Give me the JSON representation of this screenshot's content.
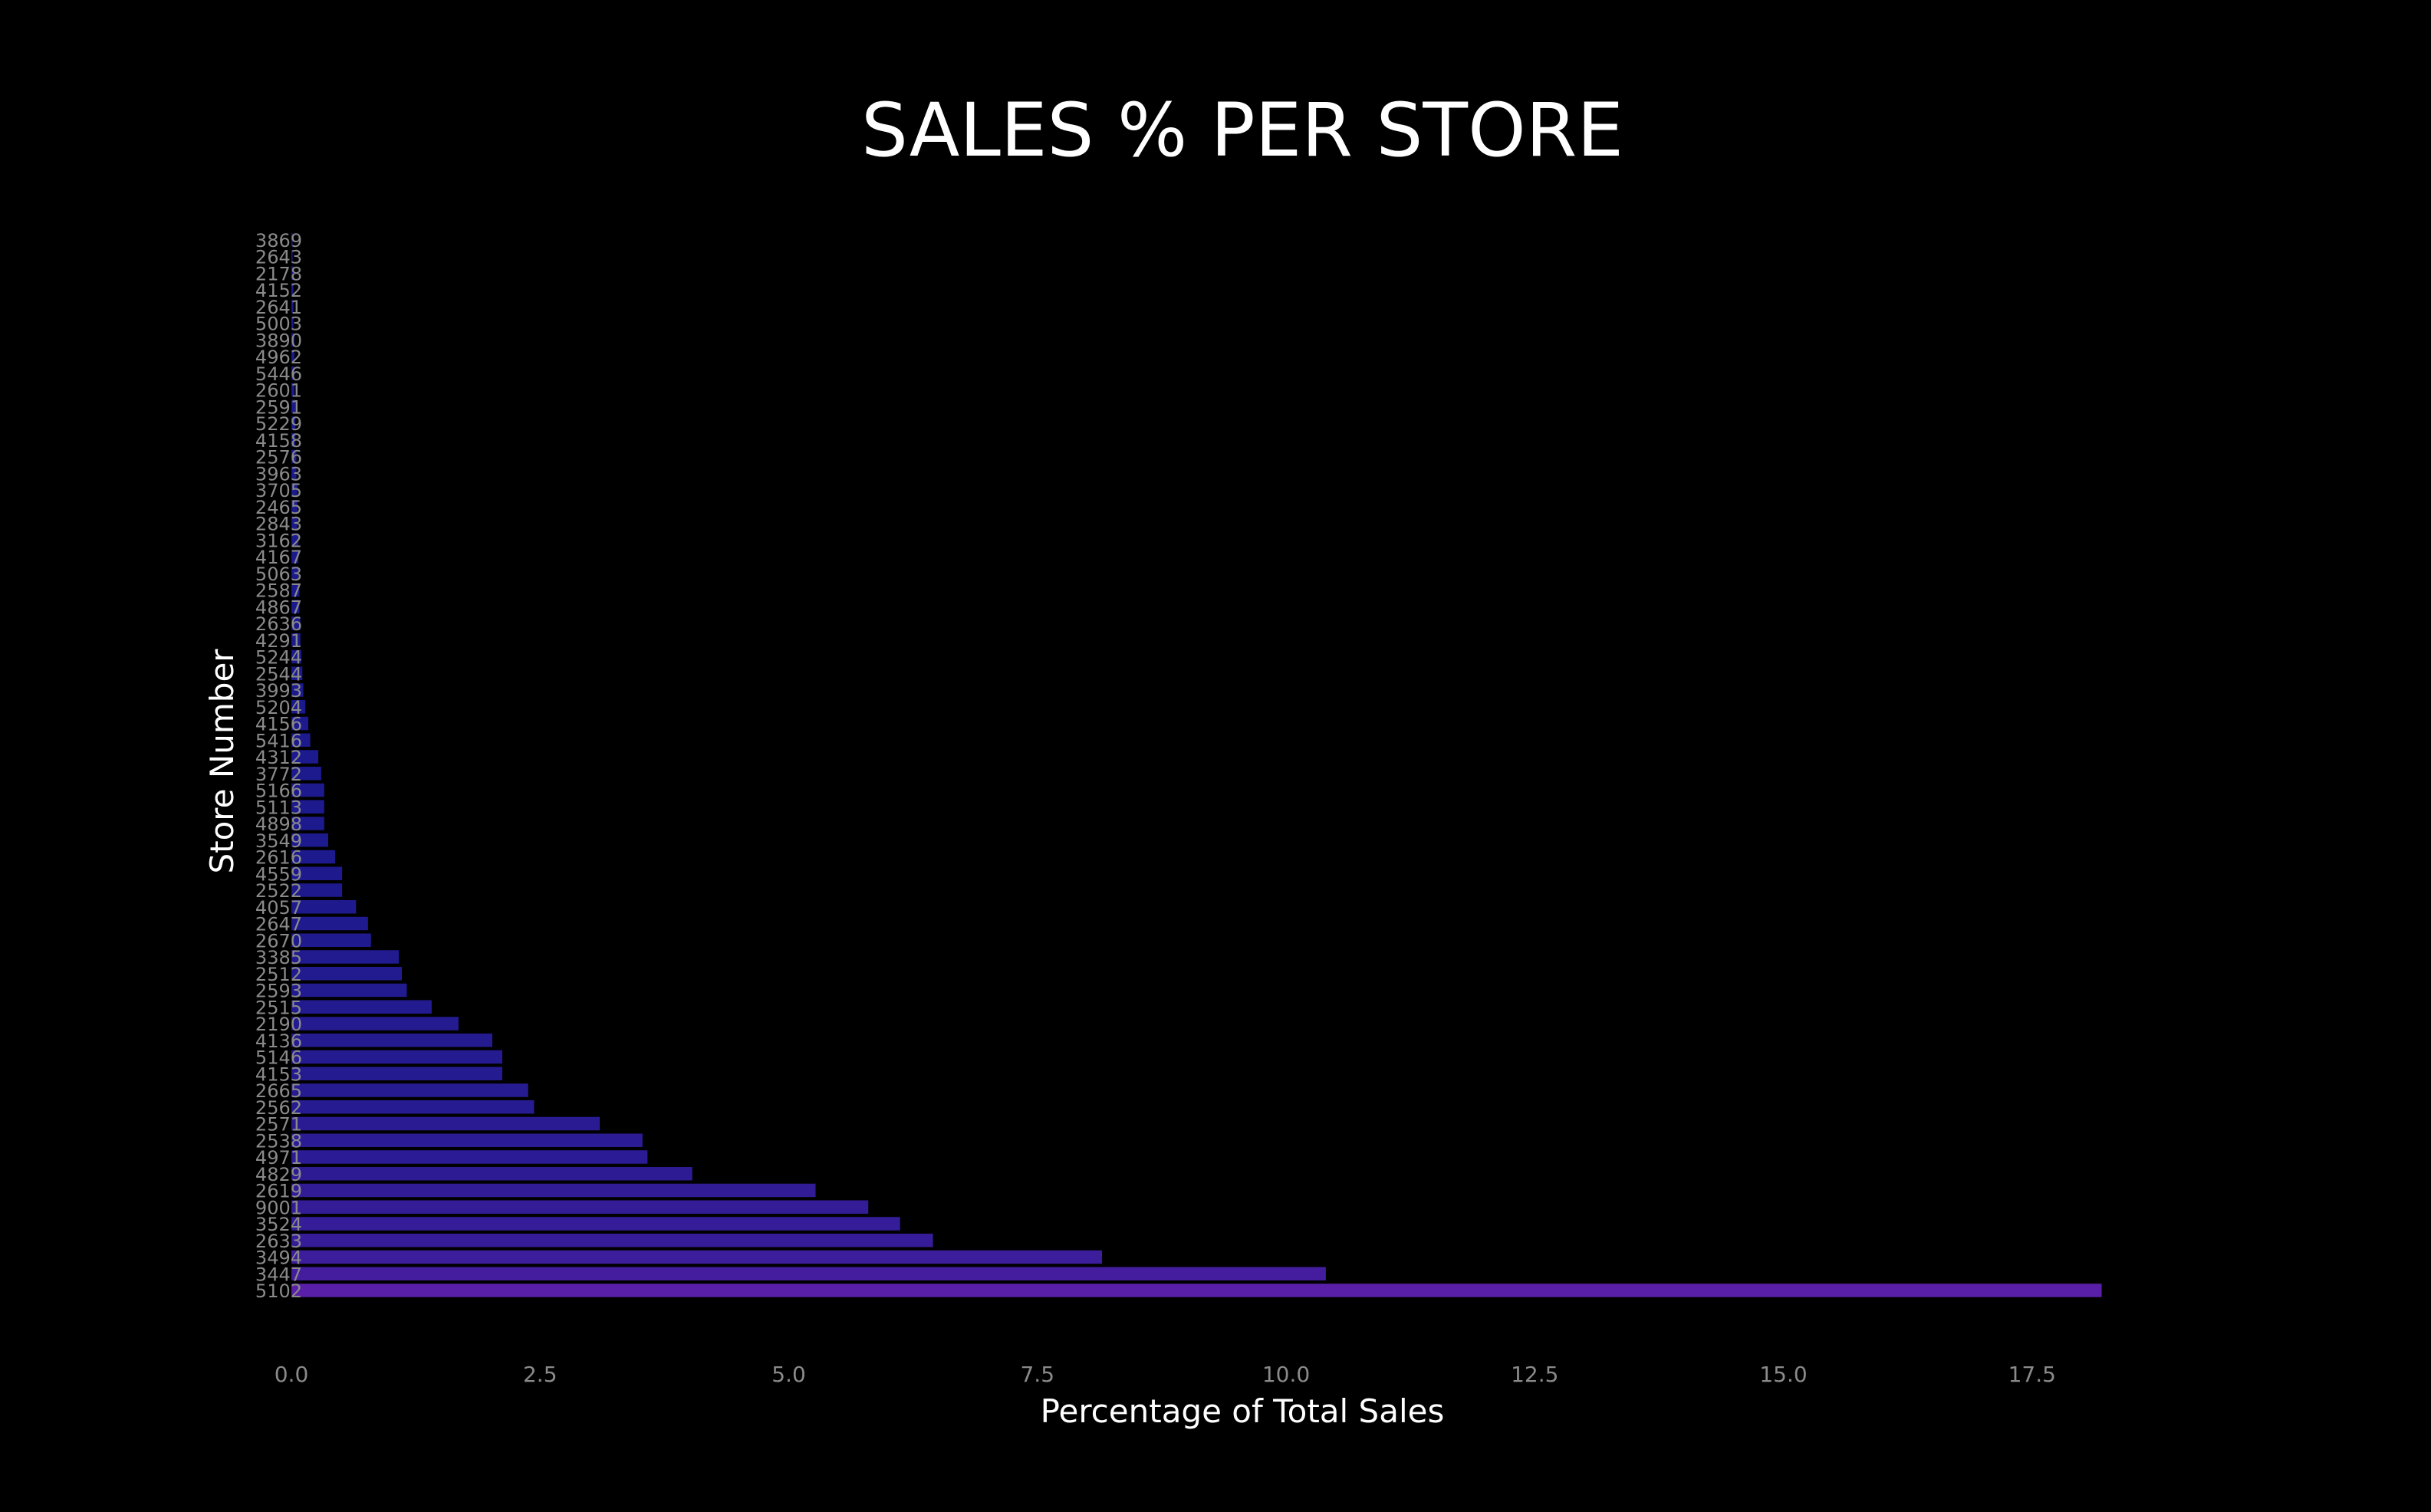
{
  "chart_data": {
    "type": "bar",
    "orientation": "horizontal",
    "title": "SALES % PER STORE",
    "xlabel": "Percentage of Total Sales",
    "ylabel": "Store Number",
    "xlim": [
      0,
      19.5
    ],
    "xticks": [
      "0.0",
      "2.5",
      "5.0",
      "7.5",
      "10.0",
      "12.5",
      "15.0",
      "17.5"
    ],
    "grid": false,
    "legend": "none",
    "colors": {
      "background": "#000000",
      "bar_low": "#1a1a8c",
      "bar_high": "#5a1fa8",
      "tick_text": "#8a8a8a",
      "title_text": "#ffffff"
    },
    "categories": [
      "5102",
      "3447",
      "3494",
      "2633",
      "3524",
      "9001",
      "2619",
      "4829",
      "4971",
      "2538",
      "2571",
      "2562",
      "2665",
      "4153",
      "5146",
      "4136",
      "2190",
      "2515",
      "2593",
      "2512",
      "3385",
      "2670",
      "2647",
      "4057",
      "2522",
      "4559",
      "2616",
      "3549",
      "4898",
      "5113",
      "5166",
      "3772",
      "4312",
      "5416",
      "4156",
      "5204",
      "3993",
      "2544",
      "5244",
      "4291",
      "2636",
      "4867",
      "2587",
      "5063",
      "4167",
      "3162",
      "2843",
      "2465",
      "3705",
      "3963",
      "2576",
      "4158",
      "5229",
      "2591",
      "2601",
      "5446",
      "4962",
      "3890",
      "5003",
      "2641",
      "4152",
      "2178",
      "2643",
      "3869"
    ],
    "values": [
      18.2,
      10.4,
      8.15,
      6.45,
      6.12,
      5.8,
      5.27,
      4.03,
      3.58,
      3.53,
      3.1,
      2.44,
      2.38,
      2.12,
      2.12,
      2.02,
      1.68,
      1.41,
      1.16,
      1.11,
      1.08,
      0.8,
      0.77,
      0.65,
      0.51,
      0.51,
      0.44,
      0.37,
      0.33,
      0.33,
      0.33,
      0.3,
      0.27,
      0.19,
      0.17,
      0.14,
      0.12,
      0.11,
      0.1,
      0.09,
      0.09,
      0.08,
      0.08,
      0.07,
      0.07,
      0.07,
      0.06,
      0.06,
      0.06,
      0.05,
      0.05,
      0.04,
      0.04,
      0.04,
      0.03,
      0.03,
      0.03,
      0.03,
      0.02,
      0.02,
      0.02,
      0.02,
      0.01,
      0.01
    ]
  }
}
